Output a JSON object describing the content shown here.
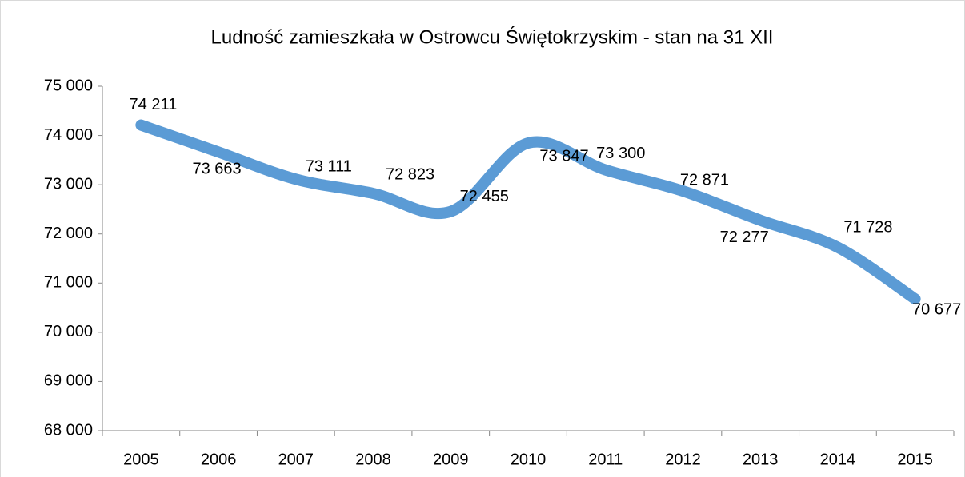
{
  "chart_data": {
    "type": "line",
    "title": "Ludność zamieszkała w Ostrowcu Świętokrzyskim - stan na 31 XII",
    "categories": [
      "2005",
      "2006",
      "2007",
      "2008",
      "2009",
      "2010",
      "2011",
      "2012",
      "2013",
      "2014",
      "2015"
    ],
    "series": [
      {
        "name": "Ludność",
        "color": "#5b9bd5",
        "values": [
          74211,
          73663,
          73111,
          72823,
          72455,
          73847,
          73300,
          72871,
          72277,
          71728,
          70677
        ],
        "value_labels": [
          "74 211",
          "73 663",
          "73 111",
          "72 823",
          "72 455",
          "73 847",
          "73 300",
          "72 871",
          "72 277",
          "71 728",
          "70 677"
        ]
      }
    ],
    "ylim": [
      68000,
      75000
    ],
    "yticks": [
      {
        "value": 68000,
        "label": "68 000"
      },
      {
        "value": 69000,
        "label": "69 000"
      },
      {
        "value": 70000,
        "label": "70 000"
      },
      {
        "value": 71000,
        "label": "71 000"
      },
      {
        "value": 72000,
        "label": "72 000"
      },
      {
        "value": 73000,
        "label": "73 000"
      },
      {
        "value": 74000,
        "label": "74 000"
      },
      {
        "value": 75000,
        "label": "75 000"
      }
    ],
    "smooth": true
  }
}
